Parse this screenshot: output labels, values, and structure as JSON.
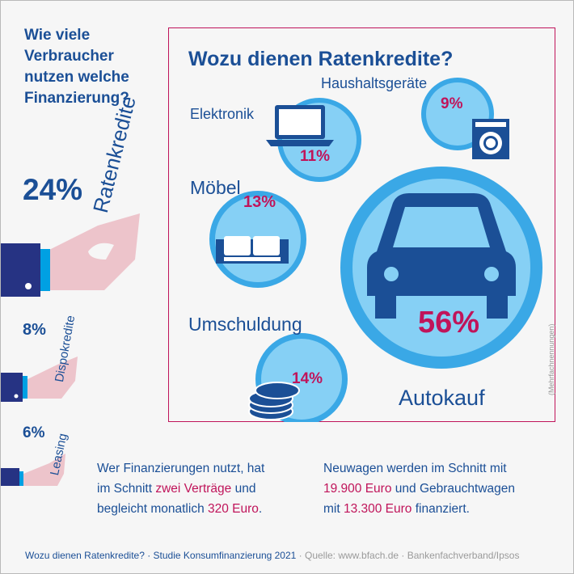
{
  "side": {
    "title_lines": [
      "Wie viele",
      "Verbraucher",
      "nutzen welche",
      "Finanzierung?"
    ],
    "items": [
      {
        "percent": "24%",
        "label": "Ratenkredite"
      },
      {
        "percent": "8%",
        "label": "Dispokredite"
      },
      {
        "percent": "6%",
        "label": "Leasing"
      }
    ]
  },
  "main": {
    "title": "Wozu dienen Ratenkredite?",
    "items": [
      {
        "label": "Elektronik",
        "percent": "11%",
        "icon": "laptop-icon"
      },
      {
        "label": "Haushaltsgeräte",
        "percent": "9%",
        "icon": "washing-machine-icon"
      },
      {
        "label": "Möbel",
        "percent": "13%",
        "icon": "sofa-icon"
      },
      {
        "label": "Autokauf",
        "percent": "56%",
        "icon": "car-icon"
      },
      {
        "label": "Umschuldung",
        "percent": "14%",
        "icon": "coins-icon"
      }
    ],
    "note": "(Mehrfachnennungen)"
  },
  "notes": {
    "left": {
      "t1": "Wer Finanzierungen nutzt, hat",
      "t2": "im Schnitt ",
      "t2_hl": "zwei Verträge",
      "t2_end": " und",
      "t3": "begleicht monatlich ",
      "t3_hl": "320 Euro",
      "t3_end": "."
    },
    "right": {
      "t1": "Neuwagen werden im Schnitt mit",
      "t2_hl": "19.900 Euro",
      "t2_end": " und Gebrauchtwagen",
      "t3": "mit ",
      "t3_hl": "13.300 Euro",
      "t3_end": " finanziert."
    }
  },
  "footer": {
    "title": "Wozu dienen Ratenkredite? · Studie Konsumfinanzierung 2021",
    "source": " · Quelle: www.bfach.de · Bankenfachverband/Ipsos"
  },
  "colors": {
    "dark_blue": "#1b4f96",
    "navy": "#263383",
    "light_blue": "#00a0e3",
    "circle": "#86d0f5",
    "ring": "#3aa8e6",
    "pink": "#edc4cb",
    "crimson": "#c0145a"
  }
}
